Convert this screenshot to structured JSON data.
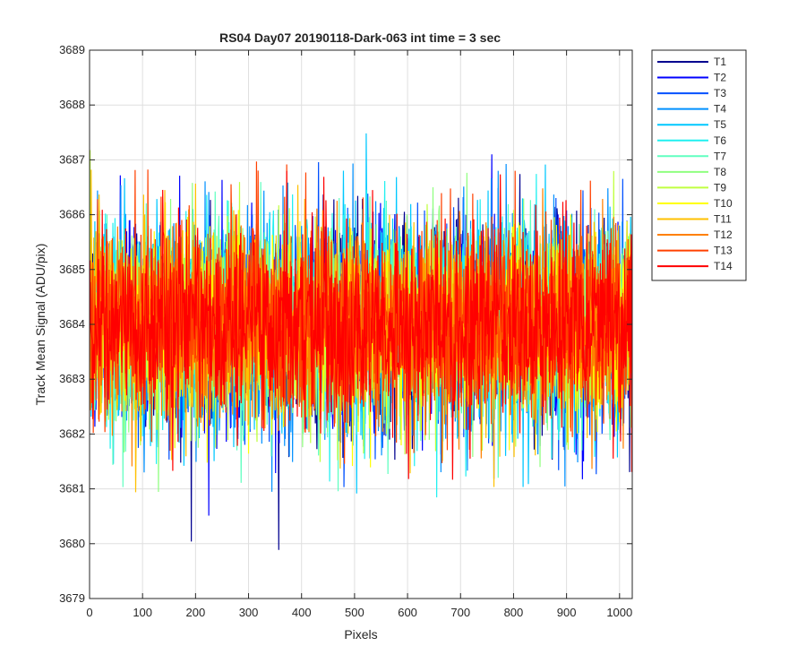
{
  "chart_data": {
    "type": "line",
    "title": "RS04 Day07 20190118-Dark-063 int time = 3 sec",
    "xlabel": "Pixels",
    "ylabel": "Track Mean Signal (ADU/pix)",
    "xlim": [
      0,
      1024
    ],
    "ylim": [
      3679,
      3689
    ],
    "x_ticks": [
      0,
      100,
      200,
      300,
      400,
      500,
      600,
      700,
      800,
      900,
      1000
    ],
    "y_ticks": [
      3679,
      3680,
      3681,
      3682,
      3683,
      3684,
      3685,
      3686,
      3687,
      3688,
      3689
    ],
    "grid": true,
    "legend_position": "outside-top-right",
    "points_per_series": 1024,
    "noise_center": 3684,
    "series": [
      {
        "name": "T1",
        "color": "#00008f",
        "low": 3681.8,
        "high": 3686.9
      },
      {
        "name": "T2",
        "color": "#0000ff",
        "low": 3682.0,
        "high": 3686.7
      },
      {
        "name": "T3",
        "color": "#0050ff",
        "low": 3681.9,
        "high": 3686.7
      },
      {
        "name": "T4",
        "color": "#0090ff",
        "low": 3681.4,
        "high": 3686.7
      },
      {
        "name": "T5",
        "color": "#00c8ff",
        "low": 3681.6,
        "high": 3686.6
      },
      {
        "name": "T6",
        "color": "#20f0f0",
        "low": 3681.8,
        "high": 3686.6
      },
      {
        "name": "T7",
        "color": "#60ffc0",
        "low": 3681.9,
        "high": 3686.4
      },
      {
        "name": "T8",
        "color": "#90ff80",
        "low": 3681.9,
        "high": 3686.3
      },
      {
        "name": "T9",
        "color": "#c0ff40",
        "low": 3681.9,
        "high": 3686.3
      },
      {
        "name": "T10",
        "color": "#ffff00",
        "low": 3682.0,
        "high": 3686.2
      },
      {
        "name": "T11",
        "color": "#ffc000",
        "low": 3681.8,
        "high": 3686.3
      },
      {
        "name": "T12",
        "color": "#ff8000",
        "low": 3681.7,
        "high": 3686.3
      },
      {
        "name": "T13",
        "color": "#ff4000",
        "low": 3681.6,
        "high": 3686.2
      },
      {
        "name": "T14",
        "color": "#ff0000",
        "low": 3681.8,
        "high": 3686.3
      }
    ]
  }
}
